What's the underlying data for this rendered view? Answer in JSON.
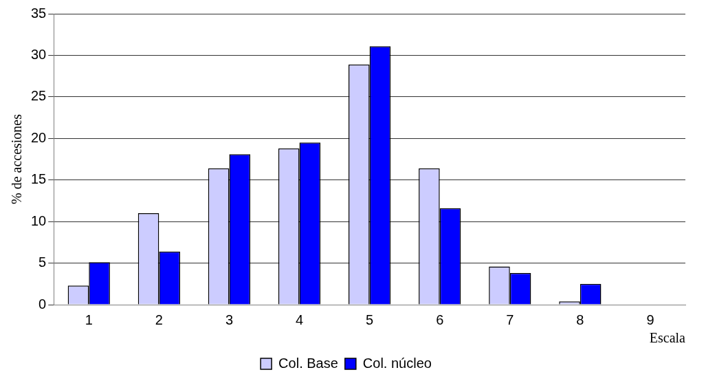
{
  "chart_data": {
    "type": "bar",
    "xlabel": "Escala",
    "ylabel": "% de accesiones",
    "categories": [
      "1",
      "2",
      "3",
      "4",
      "5",
      "6",
      "7",
      "8",
      "9"
    ],
    "series": [
      {
        "name": "Col. Base",
        "color": "#ccccff",
        "values": [
          2.3,
          11,
          16.4,
          18.8,
          28.9,
          16.4,
          4.6,
          0.4,
          0
        ]
      },
      {
        "name": "Col. núcleo",
        "color": "#0000ff",
        "values": [
          5.1,
          6.4,
          18.1,
          19.5,
          31.1,
          11.6,
          3.8,
          2.5,
          0
        ]
      }
    ],
    "ylim": [
      0,
      35
    ],
    "yticks": [
      0,
      5,
      10,
      15,
      20,
      25,
      30,
      35
    ],
    "grid": "y",
    "legend": "bottom"
  }
}
